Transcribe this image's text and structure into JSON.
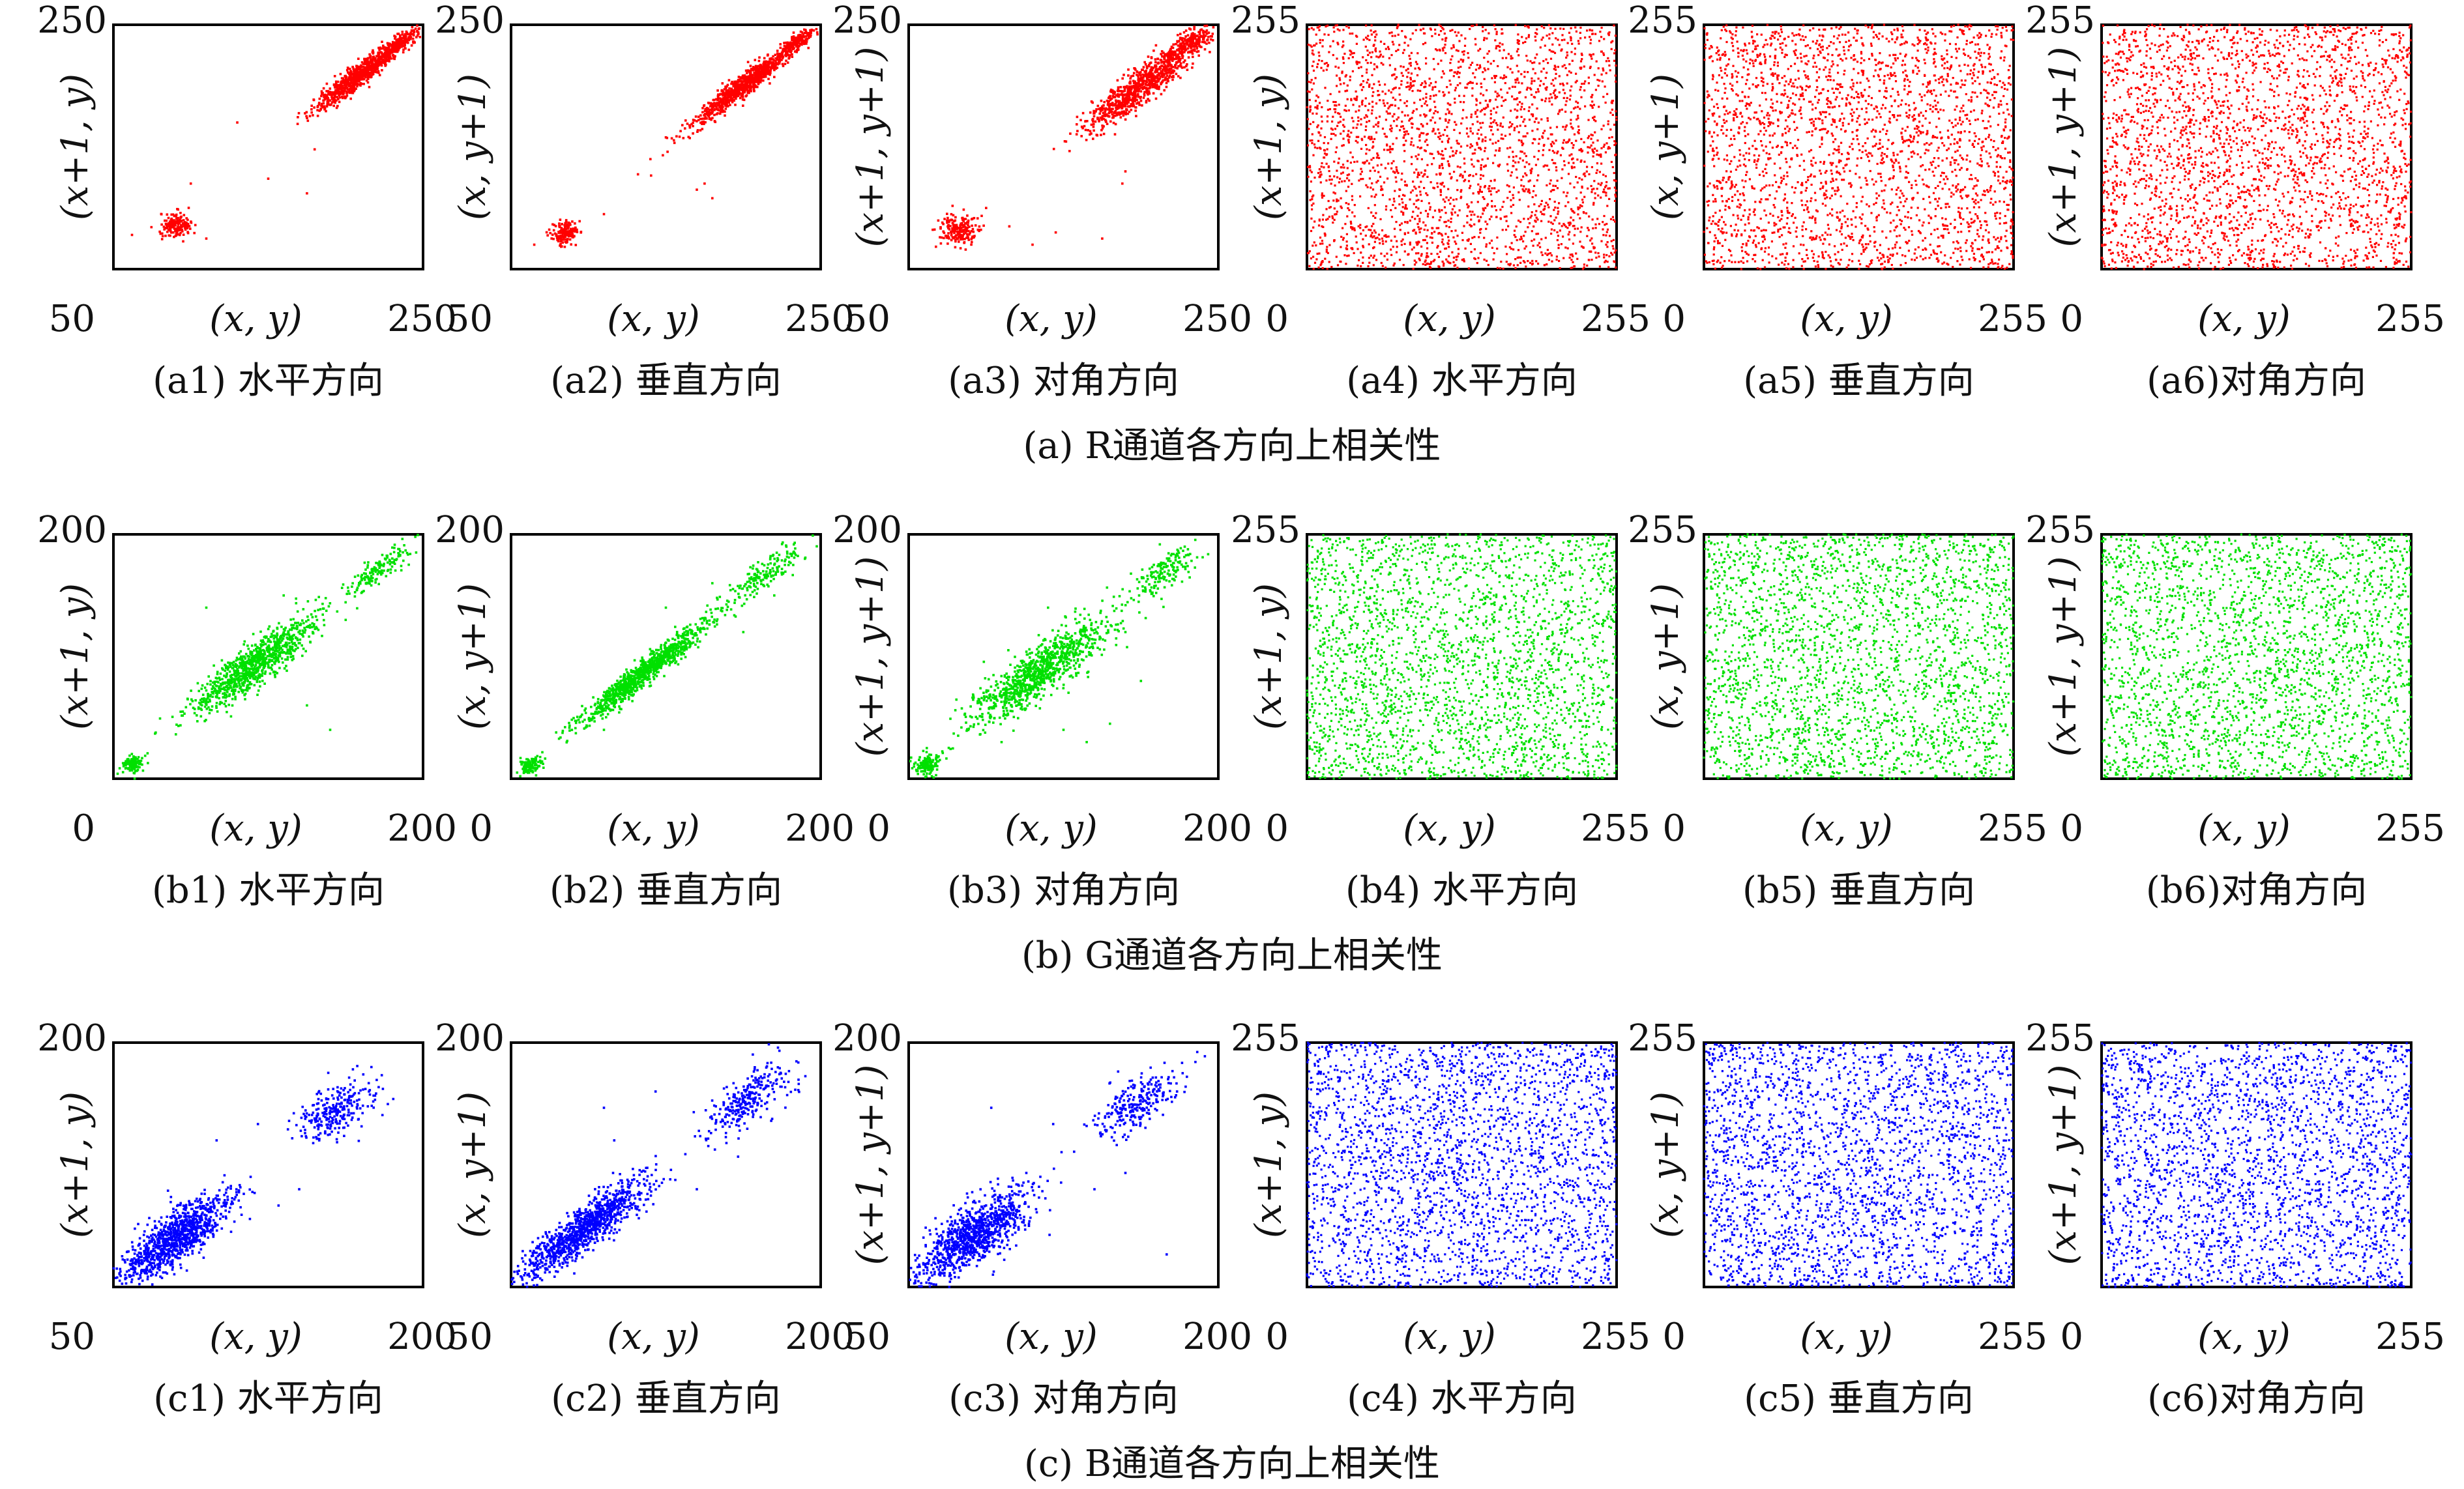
{
  "figure": {
    "colors": {
      "R": "#ff0000",
      "G": "#00e000",
      "B": "#0000ff",
      "axis": "#000000"
    }
  },
  "rows": [
    {
      "channel": "R",
      "caption": "(a) R通道各方向上相关性",
      "panels": [
        {
          "caption": "(a1) 水平方向",
          "xlabel": "(x, y)",
          "ylabel": "(x+1, y)",
          "x_min_label": "50",
          "x_max_label": "250",
          "y_max_label": "250"
        },
        {
          "caption": "(a2) 垂直方向",
          "xlabel": "(x, y)",
          "ylabel": "(x, y+1)",
          "x_min_label": "50",
          "x_max_label": "250",
          "y_max_label": "250"
        },
        {
          "caption": "(a3) 对角方向",
          "xlabel": "(x, y)",
          "ylabel": "(x+1, y+1)",
          "x_min_label": "50",
          "x_max_label": "250",
          "y_max_label": "250"
        },
        {
          "caption": "(a4) 水平方向",
          "xlabel": "(x, y)",
          "ylabel": "(x+1, y)",
          "x_min_label": "0",
          "x_max_label": "255",
          "y_max_label": "255"
        },
        {
          "caption": "(a5) 垂直方向",
          "xlabel": "(x, y)",
          "ylabel": "(x, y+1)",
          "x_min_label": "0",
          "x_max_label": "255",
          "y_max_label": "255"
        },
        {
          "caption": "(a6)对角方向",
          "xlabel": "(x, y)",
          "ylabel": "(x+1, y+1)",
          "x_min_label": "0",
          "x_max_label": "255",
          "y_max_label": "255"
        }
      ]
    },
    {
      "channel": "G",
      "caption": "(b) G通道各方向上相关性",
      "panels": [
        {
          "caption": "(b1) 水平方向",
          "xlabel": "(x, y)",
          "ylabel": "(x+1, y)",
          "x_min_label": "0",
          "x_max_label": "200",
          "y_max_label": "200"
        },
        {
          "caption": "(b2) 垂直方向",
          "xlabel": "(x, y)",
          "ylabel": "(x, y+1)",
          "x_min_label": "0",
          "x_max_label": "200",
          "y_max_label": "200"
        },
        {
          "caption": "(b3) 对角方向",
          "xlabel": "(x, y)",
          "ylabel": "(x+1, y+1)",
          "x_min_label": "0",
          "x_max_label": "200",
          "y_max_label": "200"
        },
        {
          "caption": "(b4) 水平方向",
          "xlabel": "(x, y)",
          "ylabel": "(x+1, y)",
          "x_min_label": "0",
          "x_max_label": "255",
          "y_max_label": "255"
        },
        {
          "caption": "(b5) 垂直方向",
          "xlabel": "(x, y)",
          "ylabel": "(x, y+1)",
          "x_min_label": "0",
          "x_max_label": "255",
          "y_max_label": "255"
        },
        {
          "caption": "(b6)对角方向",
          "xlabel": "(x, y)",
          "ylabel": "(x+1, y+1)",
          "x_min_label": "0",
          "x_max_label": "255",
          "y_max_label": "255"
        }
      ]
    },
    {
      "channel": "B",
      "caption": "(c) B通道各方向上相关性",
      "panels": [
        {
          "caption": "(c1) 水平方向",
          "xlabel": "(x, y)",
          "ylabel": "(x+1, y)",
          "x_min_label": "50",
          "x_max_label": "200",
          "y_max_label": "200"
        },
        {
          "caption": "(c2) 垂直方向",
          "xlabel": "(x, y)",
          "ylabel": "(x, y+1)",
          "x_min_label": "50",
          "x_max_label": "200",
          "y_max_label": "200"
        },
        {
          "caption": "(c3) 对角方向",
          "xlabel": "(x, y)",
          "ylabel": "(x+1, y+1)",
          "x_min_label": "50",
          "x_max_label": "200",
          "y_max_label": "200"
        },
        {
          "caption": "(c4) 水平方向",
          "xlabel": "(x, y)",
          "ylabel": "(x+1, y)",
          "x_min_label": "0",
          "x_max_label": "255",
          "y_max_label": "255"
        },
        {
          "caption": "(c5) 垂直方向",
          "xlabel": "(x, y)",
          "ylabel": "(x, y+1)",
          "x_min_label": "0",
          "x_max_label": "255",
          "y_max_label": "255"
        },
        {
          "caption": "(c6)对角方向",
          "xlabel": "(x, y)",
          "ylabel": "(x+1, y+1)",
          "x_min_label": "0",
          "x_max_label": "255",
          "y_max_label": "255"
        }
      ]
    }
  ],
  "chart_data": [
    {
      "id": "a1",
      "type": "scatter",
      "color": "#ff0000",
      "xlabel": "(x, y)",
      "ylabel": "(x+1, y)",
      "xlim": [
        50,
        250
      ],
      "ylim": [
        50,
        250
      ],
      "pattern": "correlated",
      "clusters": [
        {
          "cx": 90,
          "cy": 86,
          "sx": 5,
          "sy": 5,
          "n": 170
        },
        {
          "cx": 210,
          "cy": 210,
          "sx": 20,
          "sy": 3.5,
          "n": 820
        },
        {
          "cx": 235,
          "cy": 235,
          "sx": 7,
          "sy": 2.5,
          "n": 180
        }
      ],
      "scatter_points": [
        [
          62,
          78
        ],
        [
          100,
          120
        ],
        [
          130,
          170
        ],
        [
          150,
          124
        ],
        [
          175,
          112
        ],
        [
          180,
          148
        ],
        [
          243,
          248
        ],
        [
          248,
          240
        ],
        [
          110,
          75
        ]
      ]
    },
    {
      "id": "a2",
      "type": "scatter",
      "color": "#ff0000",
      "xlabel": "(x, y)",
      "ylabel": "(x, y+1)",
      "xlim": [
        50,
        250
      ],
      "ylim": [
        50,
        250
      ],
      "pattern": "correlated",
      "clusters": [
        {
          "cx": 85,
          "cy": 80,
          "sx": 5,
          "sy": 4,
          "n": 160
        },
        {
          "cx": 200,
          "cy": 200,
          "sx": 24,
          "sy": 3.5,
          "n": 850
        },
        {
          "cx": 235,
          "cy": 236,
          "sx": 7,
          "sy": 2.5,
          "n": 170
        }
      ],
      "scatter_points": [
        [
          65,
          70
        ],
        [
          110,
          95
        ],
        [
          170,
          115
        ],
        [
          175,
          120
        ],
        [
          180,
          108
        ],
        [
          140,
          140
        ]
      ]
    },
    {
      "id": "a3",
      "type": "scatter",
      "color": "#ff0000",
      "xlabel": "(x, y)",
      "ylabel": "(x+1, y+1)",
      "xlim": [
        50,
        250
      ],
      "ylim": [
        50,
        250
      ],
      "pattern": "correlated",
      "clusters": [
        {
          "cx": 82,
          "cy": 82,
          "sx": 6,
          "sy": 6,
          "n": 200
        },
        {
          "cx": 200,
          "cy": 200,
          "sx": 24,
          "sy": 5.5,
          "n": 850
        },
        {
          "cx": 233,
          "cy": 236,
          "sx": 8,
          "sy": 3.5,
          "n": 170
        }
      ],
      "scatter_points": [
        [
          115,
          85
        ],
        [
          145,
          80
        ],
        [
          175,
          75
        ],
        [
          190,
          130
        ],
        [
          188,
          120
        ],
        [
          100,
          100
        ],
        [
          130,
          70
        ]
      ]
    },
    {
      "id": "a4",
      "type": "scatter",
      "color": "#ff0000",
      "xlabel": "(x, y)",
      "ylabel": "(x+1, y)",
      "xlim": [
        0,
        255
      ],
      "ylim": [
        0,
        255
      ],
      "pattern": "uniform",
      "n_points": 2600
    },
    {
      "id": "a5",
      "type": "scatter",
      "color": "#ff0000",
      "xlabel": "(x, y)",
      "ylabel": "(x, y+1)",
      "xlim": [
        0,
        255
      ],
      "ylim": [
        0,
        255
      ],
      "pattern": "uniform",
      "n_points": 2600
    },
    {
      "id": "a6",
      "type": "scatter",
      "color": "#ff0000",
      "xlabel": "(x, y)",
      "ylabel": "(x+1, y+1)",
      "xlim": [
        0,
        255
      ],
      "ylim": [
        0,
        255
      ],
      "pattern": "uniform",
      "n_points": 2600
    },
    {
      "id": "b1",
      "type": "scatter",
      "color": "#00e000",
      "xlabel": "(x, y)",
      "ylabel": "(x+1, y)",
      "xlim": [
        0,
        200
      ],
      "ylim": [
        0,
        200
      ],
      "pattern": "correlated",
      "clusters": [
        {
          "cx": 12,
          "cy": 12,
          "sx": 4,
          "sy": 3,
          "n": 130
        },
        {
          "cx": 90,
          "cy": 92,
          "sx": 28,
          "sy": 6.5,
          "n": 950
        },
        {
          "cx": 170,
          "cy": 170,
          "sx": 14,
          "sy": 4,
          "n": 160
        }
      ],
      "scatter_points": [
        [
          60,
          140
        ],
        [
          140,
          40
        ],
        [
          125,
          60
        ],
        [
          150,
          130
        ],
        [
          195,
          198
        ],
        [
          110,
          150
        ]
      ]
    },
    {
      "id": "b2",
      "type": "scatter",
      "color": "#00e000",
      "xlabel": "(x, y)",
      "ylabel": "(x, y+1)",
      "xlim": [
        0,
        200
      ],
      "ylim": [
        0,
        200
      ],
      "pattern": "correlated",
      "clusters": [
        {
          "cx": 12,
          "cy": 10,
          "sx": 4,
          "sy": 3,
          "n": 120
        },
        {
          "cx": 85,
          "cy": 86,
          "sx": 30,
          "sy": 4,
          "n": 1000
        },
        {
          "cx": 165,
          "cy": 168,
          "sx": 16,
          "sy": 5,
          "n": 170
        }
      ],
      "scatter_points": [
        [
          100,
          140
        ],
        [
          150,
          120
        ],
        [
          170,
          150
        ],
        [
          60,
          40
        ],
        [
          130,
          160
        ]
      ]
    },
    {
      "id": "b3",
      "type": "scatter",
      "color": "#00e000",
      "xlabel": "(x, y)",
      "ylabel": "(x+1, y+1)",
      "xlim": [
        0,
        200
      ],
      "ylim": [
        0,
        200
      ],
      "pattern": "correlated",
      "clusters": [
        {
          "cx": 12,
          "cy": 12,
          "sx": 5,
          "sy": 4,
          "n": 140
        },
        {
          "cx": 85,
          "cy": 88,
          "sx": 30,
          "sy": 8,
          "n": 980
        },
        {
          "cx": 165,
          "cy": 168,
          "sx": 14,
          "sy": 6,
          "n": 160
        }
      ],
      "scatter_points": [
        [
          60,
          30
        ],
        [
          100,
          40
        ],
        [
          115,
          30
        ],
        [
          130,
          45
        ],
        [
          140,
          120
        ],
        [
          150,
          80
        ],
        [
          90,
          140
        ]
      ]
    },
    {
      "id": "b4",
      "type": "scatter",
      "color": "#00e000",
      "xlabel": "(x, y)",
      "ylabel": "(x+1, y)",
      "xlim": [
        0,
        255
      ],
      "ylim": [
        0,
        255
      ],
      "pattern": "uniform",
      "n_points": 2600
    },
    {
      "id": "b5",
      "type": "scatter",
      "color": "#00e000",
      "xlabel": "(x, y)",
      "ylabel": "(x, y+1)",
      "xlim": [
        0,
        255
      ],
      "ylim": [
        0,
        255
      ],
      "pattern": "uniform",
      "n_points": 2600
    },
    {
      "id": "b6",
      "type": "scatter",
      "color": "#00e000",
      "xlabel": "(x, y)",
      "ylabel": "(x+1, y+1)",
      "xlim": [
        0,
        255
      ],
      "ylim": [
        0,
        255
      ],
      "pattern": "uniform",
      "n_points": 2600
    },
    {
      "id": "c1",
      "type": "scatter",
      "color": "#0000ff",
      "xlabel": "(x, y)",
      "ylabel": "(x+1, y)",
      "xlim": [
        50,
        200
      ],
      "ylim": [
        50,
        200
      ],
      "pattern": "correlated",
      "clusters": [
        {
          "cx": 80,
          "cy": 80,
          "sx": 18,
          "sy": 6,
          "n": 1000
        },
        {
          "cx": 158,
          "cy": 158,
          "sx": 11,
          "sy": 6,
          "n": 260
        }
      ],
      "scatter_points": [
        [
          100,
          140
        ],
        [
          140,
          110
        ],
        [
          120,
          150
        ],
        [
          175,
          185
        ],
        [
          180,
          180
        ],
        [
          130,
          100
        ]
      ]
    },
    {
      "id": "c2",
      "type": "scatter",
      "color": "#0000ff",
      "xlabel": "(x, y)",
      "ylabel": "(x, y+1)",
      "xlim": [
        50,
        200
      ],
      "ylim": [
        50,
        200
      ],
      "pattern": "correlated",
      "clusters": [
        {
          "cx": 85,
          "cy": 85,
          "sx": 22,
          "sy": 5,
          "n": 1050
        },
        {
          "cx": 165,
          "cy": 165,
          "sx": 14,
          "sy": 6,
          "n": 270
        }
      ],
      "scatter_points": [
        [
          95,
          160
        ],
        [
          100,
          140
        ],
        [
          120,
          170
        ],
        [
          140,
          110
        ],
        [
          160,
          130
        ],
        [
          180,
          195
        ]
      ]
    },
    {
      "id": "c3",
      "type": "scatter",
      "color": "#0000ff",
      "xlabel": "(x, y)",
      "ylabel": "(x+1, y+1)",
      "xlim": [
        50,
        200
      ],
      "ylim": [
        50,
        200
      ],
      "pattern": "correlated",
      "clusters": [
        {
          "cx": 82,
          "cy": 82,
          "sx": 18,
          "sy": 7,
          "n": 1000
        },
        {
          "cx": 160,
          "cy": 162,
          "sx": 12,
          "sy": 6,
          "n": 250
        }
      ],
      "scatter_points": [
        [
          90,
          160
        ],
        [
          120,
          150
        ],
        [
          140,
          110
        ],
        [
          155,
          120
        ],
        [
          175,
          70
        ],
        [
          180,
          170
        ]
      ]
    },
    {
      "id": "c4",
      "type": "scatter",
      "color": "#0000ff",
      "xlabel": "(x, y)",
      "ylabel": "(x+1, y)",
      "xlim": [
        0,
        255
      ],
      "ylim": [
        0,
        255
      ],
      "pattern": "uniform",
      "n_points": 2600
    },
    {
      "id": "c5",
      "type": "scatter",
      "color": "#0000ff",
      "xlabel": "(x, y)",
      "ylabel": "(x, y+1)",
      "xlim": [
        0,
        255
      ],
      "ylim": [
        0,
        255
      ],
      "pattern": "uniform",
      "n_points": 2600
    },
    {
      "id": "c6",
      "type": "scatter",
      "color": "#0000ff",
      "xlabel": "(x, y)",
      "ylabel": "(x+1, y+1)",
      "xlim": [
        0,
        255
      ],
      "ylim": [
        0,
        255
      ],
      "pattern": "uniform",
      "n_points": 2600
    }
  ]
}
